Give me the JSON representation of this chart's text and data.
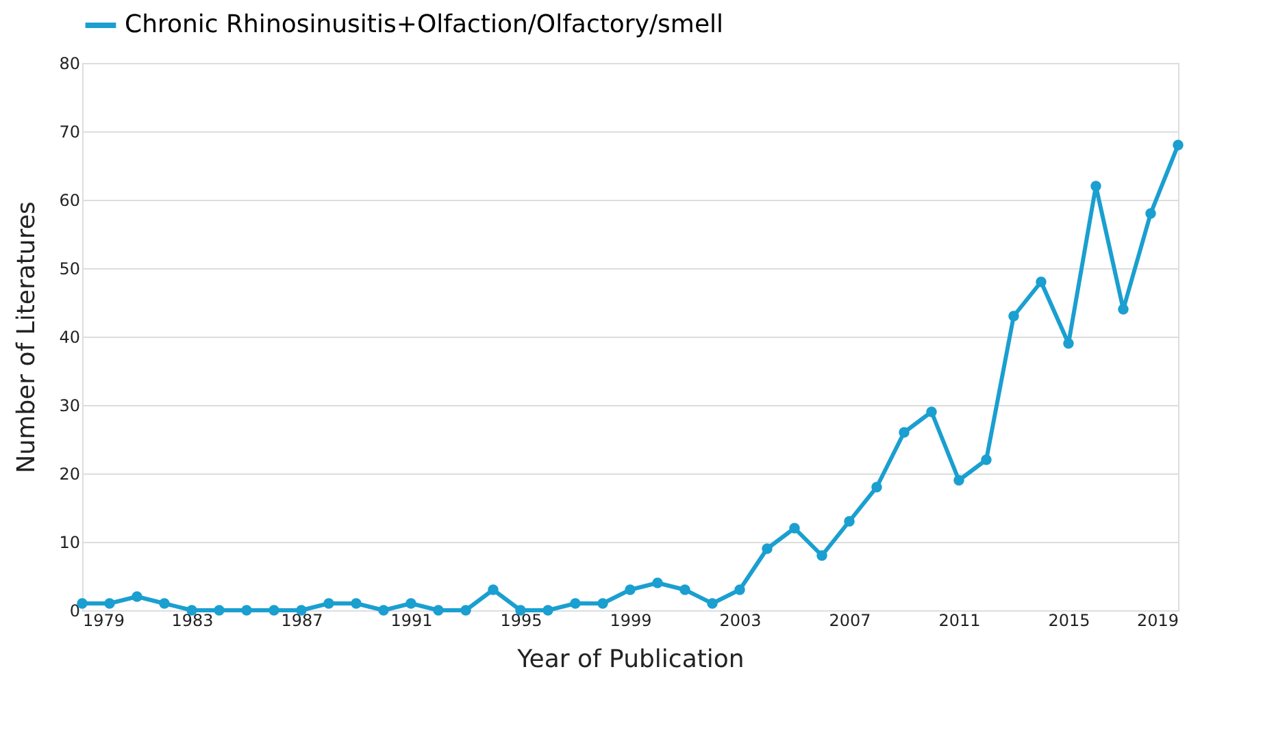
{
  "chart_data": {
    "type": "line",
    "xlabel": "Year of Publication",
    "ylabel": "Number of Literatures",
    "x": [
      1979,
      1980,
      1981,
      1982,
      1983,
      1984,
      1985,
      1986,
      1987,
      1988,
      1989,
      1990,
      1991,
      1992,
      1993,
      1994,
      1995,
      1996,
      1997,
      1998,
      1999,
      2000,
      2001,
      2002,
      2003,
      2004,
      2005,
      2006,
      2007,
      2008,
      2009,
      2010,
      2011,
      2012,
      2013,
      2014,
      2015,
      2016,
      2017,
      2018,
      2019
    ],
    "series": [
      {
        "name": "Chronic Rhinosinusitis+Olfaction/Olfactory/smell",
        "color": "#1a9fd0",
        "values": [
          1,
          1,
          2,
          1,
          0,
          0,
          0,
          0,
          0,
          1,
          1,
          0,
          1,
          0,
          0,
          3,
          0,
          0,
          1,
          1,
          3,
          4,
          3,
          1,
          3,
          9,
          12,
          8,
          13,
          18,
          26,
          29,
          19,
          22,
          43,
          48,
          39,
          62,
          44,
          58,
          68
        ]
      }
    ],
    "xlim": [
      1979,
      2019
    ],
    "xticks": [
      1979,
      1983,
      1987,
      1991,
      1995,
      1999,
      2003,
      2007,
      2011,
      2015,
      2019
    ],
    "ylim": [
      0,
      80
    ],
    "yticks": [
      0,
      10,
      20,
      30,
      40,
      50,
      60,
      70,
      80
    ],
    "grid": "y",
    "legend": "top left",
    "marker": "circle",
    "line_style": "solid"
  }
}
